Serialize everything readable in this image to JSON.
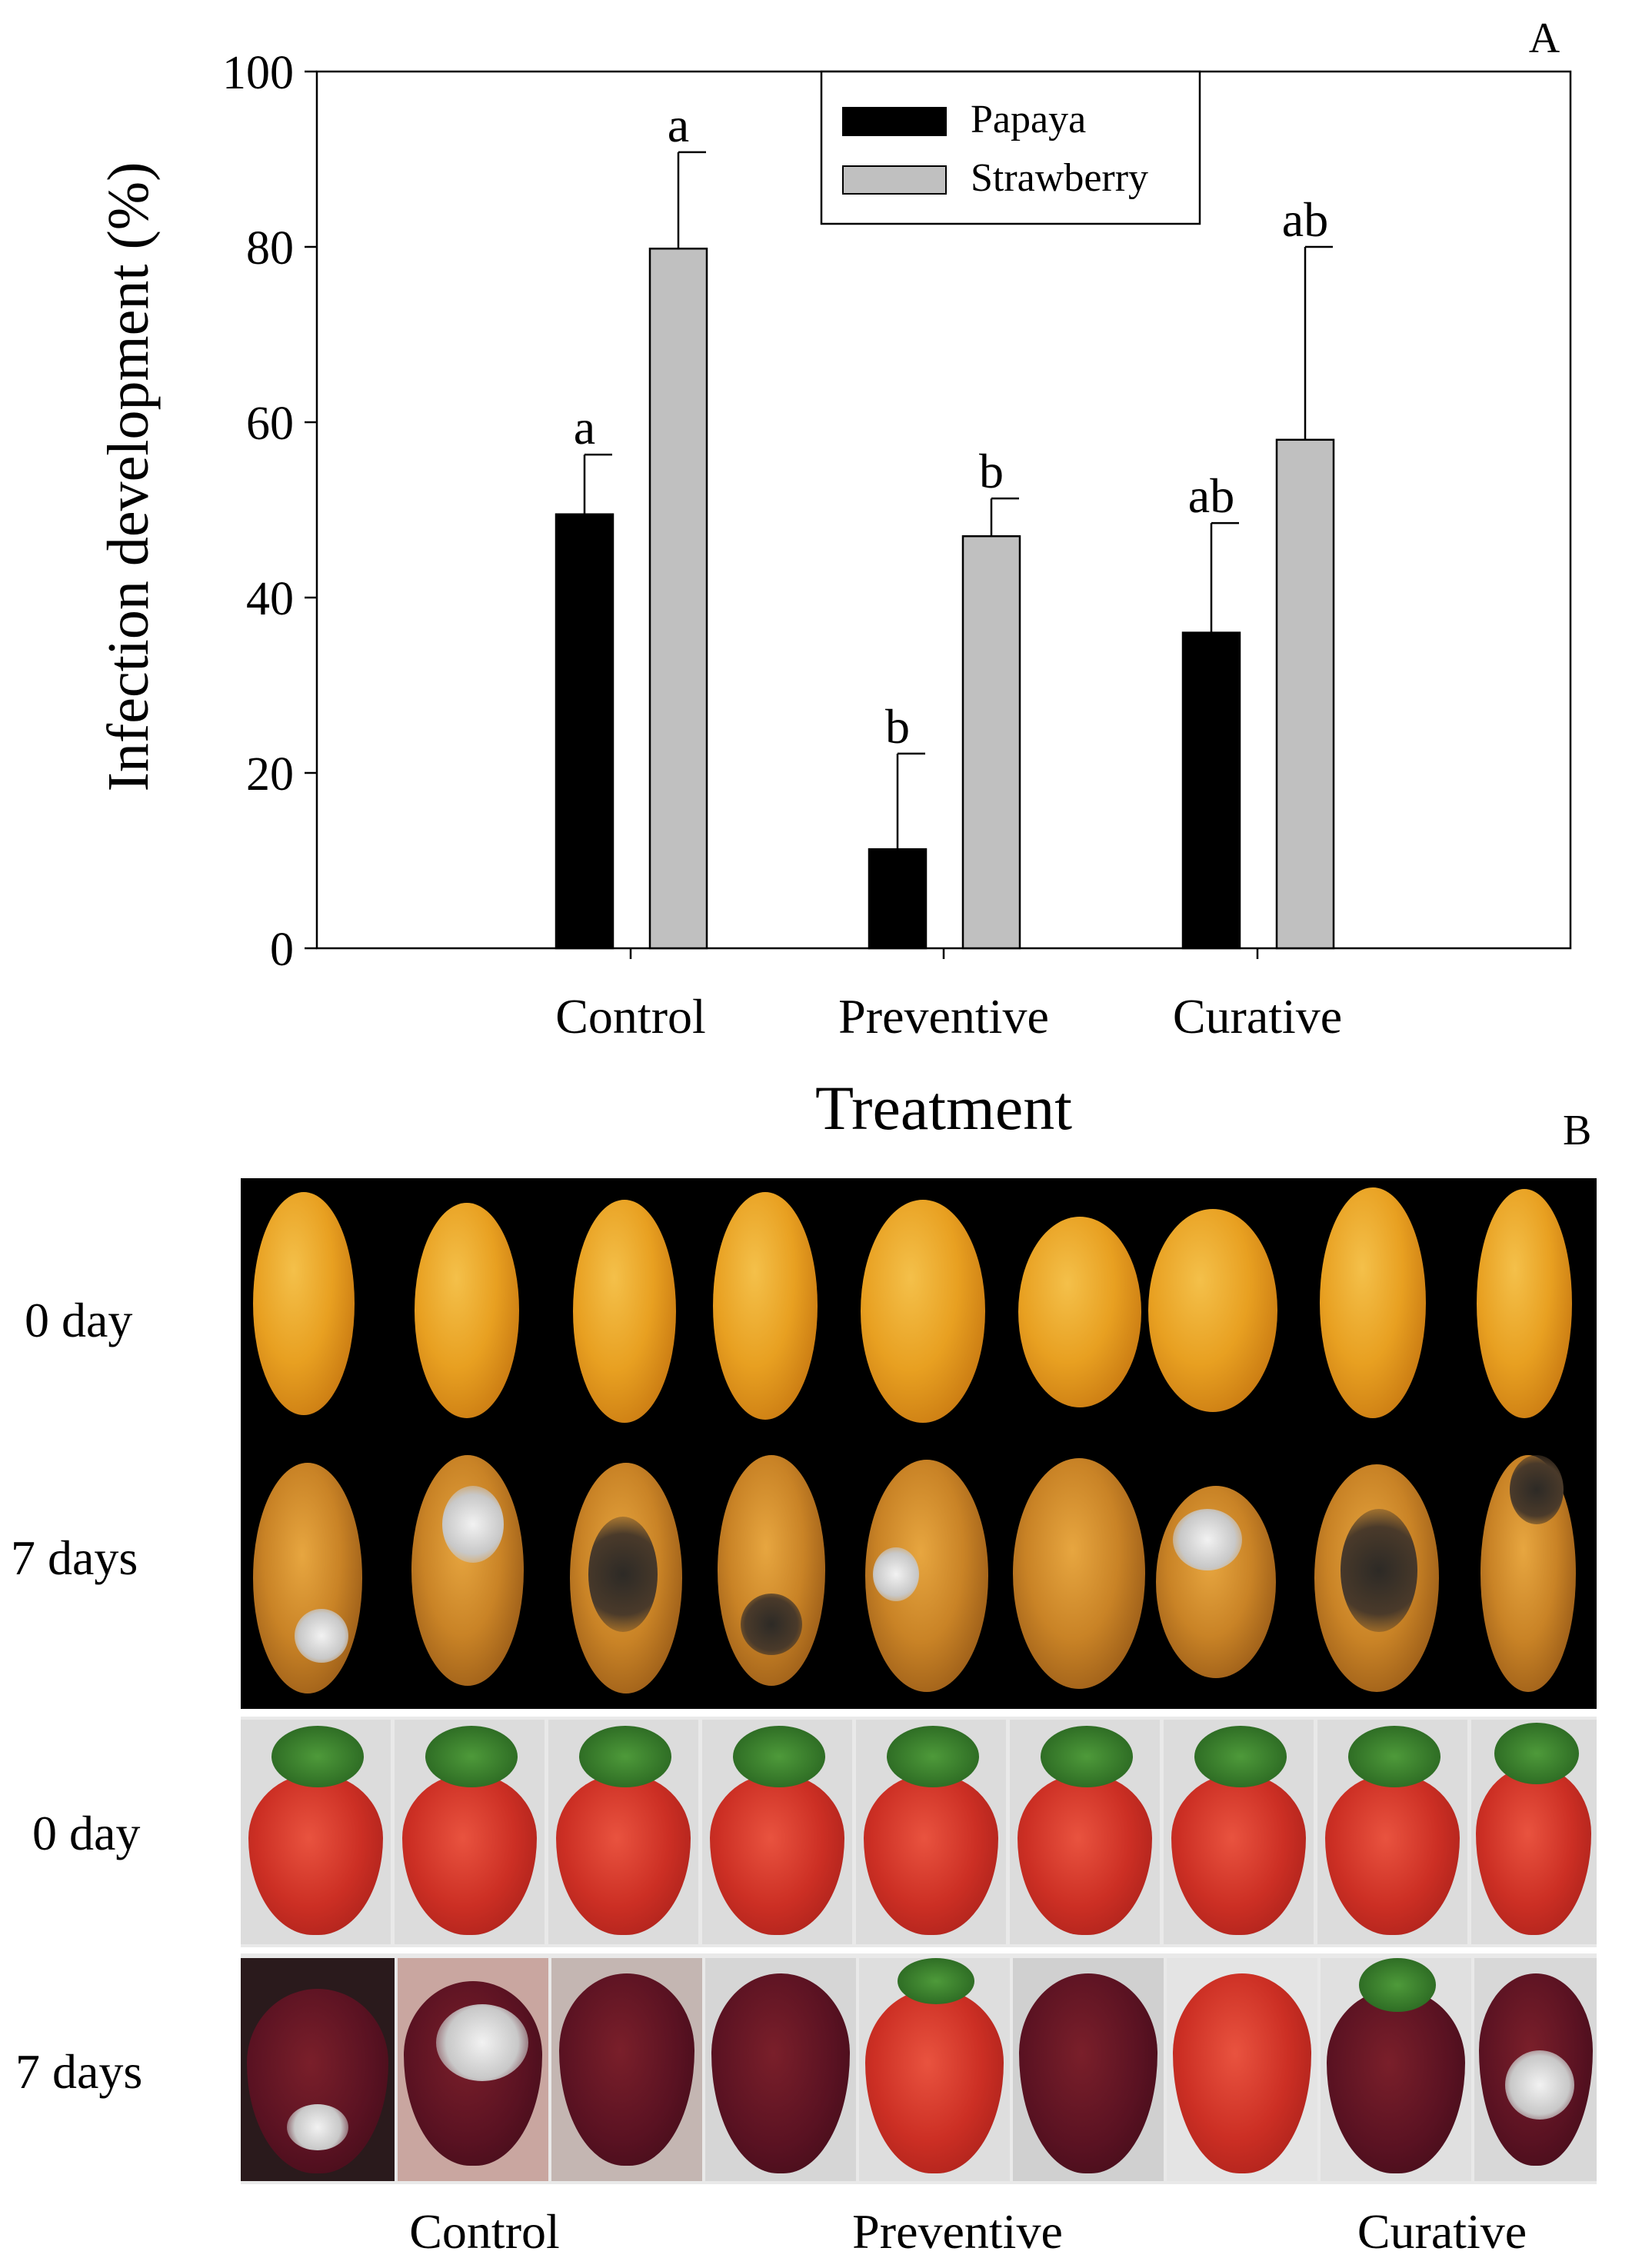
{
  "chart_data": {
    "type": "bar",
    "panel_label": "A",
    "xlabel": "Treatment",
    "ylabel": "Infection development (%)",
    "ylim": [
      0,
      100
    ],
    "yticks": [
      "0",
      "20",
      "40",
      "60",
      "80",
      "100"
    ],
    "categories": [
      "Control",
      "Preventive",
      "Curative"
    ],
    "series": [
      {
        "name": "Papaya",
        "color": "#000000",
        "values": [
          49.5,
          11.3,
          36
        ],
        "errors": [
          6.8,
          10.9,
          12.5
        ],
        "letters": [
          "a",
          "b",
          "ab"
        ]
      },
      {
        "name": "Strawberry",
        "color": "#c0c0c0",
        "values": [
          79.8,
          47,
          58
        ],
        "errors": [
          11,
          4.3,
          22
        ],
        "letters": [
          "a",
          "b",
          "ab"
        ]
      }
    ],
    "legend_position": "top-center",
    "grid": false
  },
  "photo_panel": {
    "panel_label": "B",
    "row_labels": [
      "0 day",
      "7 days",
      "0 day",
      "7 days"
    ],
    "group_labels": [
      "Control",
      "Preventive",
      "Curative"
    ]
  }
}
